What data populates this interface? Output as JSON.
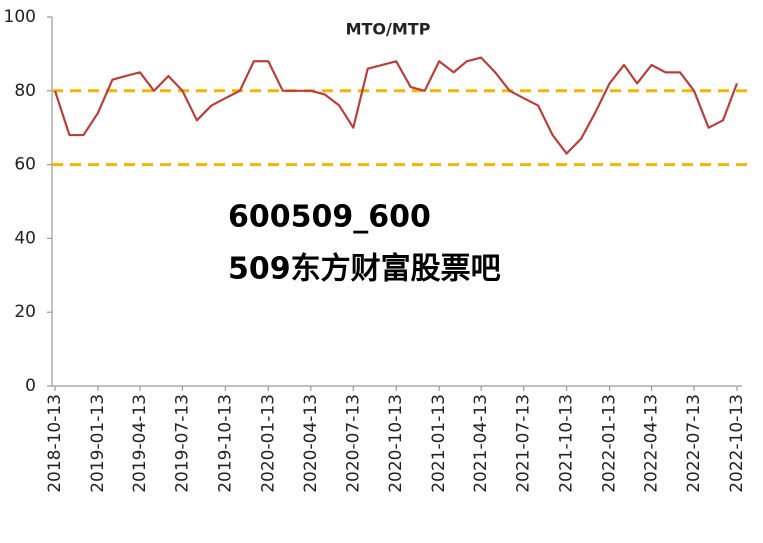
{
  "chart_data": {
    "type": "line",
    "title": "MTO/MTP",
    "watermark": [
      "600509_600",
      "509东方财富股票吧"
    ],
    "x": [
      "2018-10-13",
      "2018-11-13",
      "2018-12-13",
      "2019-01-13",
      "2019-02-13",
      "2019-03-13",
      "2019-04-13",
      "2019-05-13",
      "2019-06-13",
      "2019-07-13",
      "2019-08-13",
      "2019-09-13",
      "2019-10-13",
      "2019-11-13",
      "2019-12-13",
      "2020-01-13",
      "2020-02-13",
      "2020-03-13",
      "2020-04-13",
      "2020-05-13",
      "2020-06-13",
      "2020-07-13",
      "2020-08-13",
      "2020-09-13",
      "2020-10-13",
      "2020-11-13",
      "2020-12-13",
      "2021-01-13",
      "2021-02-13",
      "2021-03-13",
      "2021-04-13",
      "2021-05-13",
      "2021-06-13",
      "2021-07-13",
      "2021-08-13",
      "2021-09-13",
      "2021-10-13",
      "2021-11-13",
      "2021-12-13",
      "2022-01-13",
      "2022-02-13",
      "2022-03-13",
      "2022-04-13",
      "2022-05-13",
      "2022-06-13",
      "2022-07-13",
      "2022-08-13",
      "2022-09-13",
      "2022-10-13"
    ],
    "values": [
      80,
      68,
      68,
      74,
      83,
      84,
      85,
      80,
      84,
      80,
      72,
      76,
      78,
      80,
      88,
      88,
      80,
      80,
      80,
      79,
      76,
      70,
      86,
      87,
      88,
      81,
      80,
      88,
      85,
      88,
      89,
      85,
      80,
      78,
      76,
      68,
      63,
      67,
      74,
      82,
      87,
      82,
      87,
      85,
      85,
      80,
      70,
      72,
      82
    ],
    "color": "#b5403e",
    "reference_lines": [
      80,
      60
    ],
    "reference_color": "#f2b600",
    "xlim": [
      "2018-10-13",
      "2022-10-13"
    ],
    "xticks": [
      "2018-10-13",
      "2019-01-13",
      "2019-04-13",
      "2019-07-13",
      "2019-10-13",
      "2020-01-13",
      "2020-04-13",
      "2020-07-13",
      "2020-10-13",
      "2021-01-13",
      "2021-04-13",
      "2021-07-13",
      "2021-10-13",
      "2022-01-13",
      "2022-04-13",
      "2022-07-13",
      "2022-10-13"
    ],
    "ylim": [
      0,
      100
    ],
    "yticks": [
      0,
      20,
      40,
      60,
      80,
      100
    ]
  }
}
